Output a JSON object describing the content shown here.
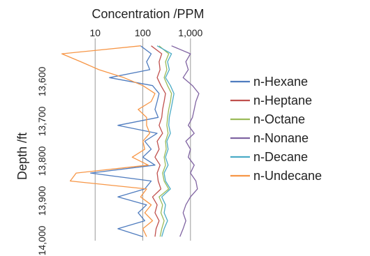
{
  "chart_data": {
    "type": "line",
    "title": "Concentration /PPM",
    "ylabel": "Depth /ft",
    "xlabel": "",
    "x_scale": "log",
    "xlim": [
      1,
      2500
    ],
    "ylim": [
      13500,
      14000
    ],
    "y_inverted": true,
    "x_ticks": [
      {
        "value": 10,
        "label": "10"
      },
      {
        "value": 100,
        "label": "100"
      },
      {
        "value": 1000,
        "label": "1,000"
      }
    ],
    "y_ticks": [
      {
        "value": 13600,
        "label": "13,600"
      },
      {
        "value": 13700,
        "label": "13,700"
      },
      {
        "value": 13800,
        "label": "13,800"
      },
      {
        "value": 13900,
        "label": "13,900"
      },
      {
        "value": 14000,
        "label": "14,000"
      }
    ],
    "grid": {
      "vertical": true,
      "horizontal": false
    },
    "legend_position": "right",
    "depth": [
      13510,
      13530,
      13550,
      13570,
      13590,
      13610,
      13630,
      13650,
      13670,
      13690,
      13710,
      13730,
      13750,
      13770,
      13790,
      13810,
      13830,
      13850,
      13870,
      13890,
      13910,
      13930,
      13950,
      13970,
      13990
    ],
    "series": [
      {
        "name": "n-Hexane",
        "color": "#4f7cbf",
        "values": [
          90,
          150,
          120,
          140,
          20,
          160,
          220,
          200,
          180,
          210,
          30,
          200,
          110,
          150,
          100,
          180,
          8,
          150,
          110,
          30,
          120,
          80,
          110,
          30,
          100
        ]
      },
      {
        "name": "n-Heptane",
        "color": "#c0504d",
        "values": [
          150,
          250,
          220,
          230,
          200,
          240,
          300,
          280,
          260,
          250,
          220,
          260,
          200,
          220,
          180,
          230,
          200,
          210,
          240,
          160,
          200,
          180,
          220,
          190,
          180
        ]
      },
      {
        "name": "n-Octane",
        "color": "#9bbb59",
        "values": [
          220,
          350,
          300,
          320,
          280,
          330,
          400,
          380,
          350,
          330,
          320,
          340,
          300,
          310,
          280,
          300,
          260,
          280,
          350,
          220,
          260,
          240,
          280,
          250,
          230
        ]
      },
      {
        "name": "n-Nonane",
        "color": "#8064a2",
        "values": [
          400,
          1000,
          800,
          900,
          700,
          1100,
          1500,
          1300,
          1200,
          1100,
          900,
          1200,
          800,
          1000,
          900,
          1200,
          1000,
          1300,
          1400,
          1000,
          800,
          700,
          800,
          700,
          600
        ]
      },
      {
        "name": "n-Decane",
        "color": "#4bacc6",
        "values": [
          200,
          400,
          330,
          360,
          300,
          380,
          450,
          420,
          390,
          360,
          350,
          380,
          320,
          340,
          300,
          340,
          280,
          300,
          380,
          250,
          300,
          280,
          330,
          280,
          250
        ]
      },
      {
        "name": "n-Undecane",
        "color": "#f79646",
        "values": [
          90,
          2,
          5,
          12,
          40,
          100,
          180,
          150,
          80,
          120,
          120,
          140,
          100,
          110,
          60,
          130,
          4,
          3,
          120,
          90,
          150,
          110,
          160,
          100,
          120
        ]
      }
    ]
  }
}
